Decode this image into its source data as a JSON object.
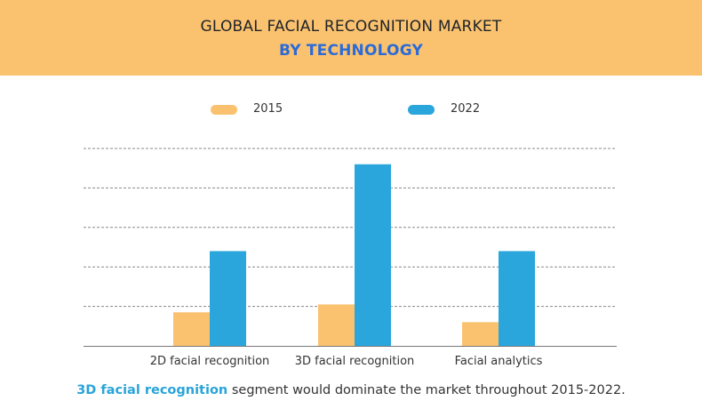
{
  "header": {
    "title": "GLOBAL FACIAL RECOGNITION MARKET",
    "subtitle": "BY TECHNOLOGY"
  },
  "footer": {
    "highlight": "3D facial recognition",
    "rest": " segment would dominate the market throughout 2015-2022."
  },
  "colors": {
    "header_bg": "#fac26f",
    "series_2015": "#fac26f",
    "series_2022": "#2aa6dc",
    "subtitle": "#2b6bd8",
    "footer_highlight": "#29a4d9"
  },
  "chart_data": {
    "type": "bar",
    "categories": [
      "2D facial recognition",
      "3D facial recognition",
      "Facial analytics"
    ],
    "series": [
      {
        "name": "2015",
        "values": [
          0.85,
          1.05,
          0.6
        ]
      },
      {
        "name": "2022",
        "values": [
          2.4,
          4.6,
          2.4
        ]
      }
    ],
    "ylim": [
      0,
      5
    ],
    "grid": true,
    "legend_position": "top-center",
    "xlabel": "",
    "ylabel": ""
  }
}
